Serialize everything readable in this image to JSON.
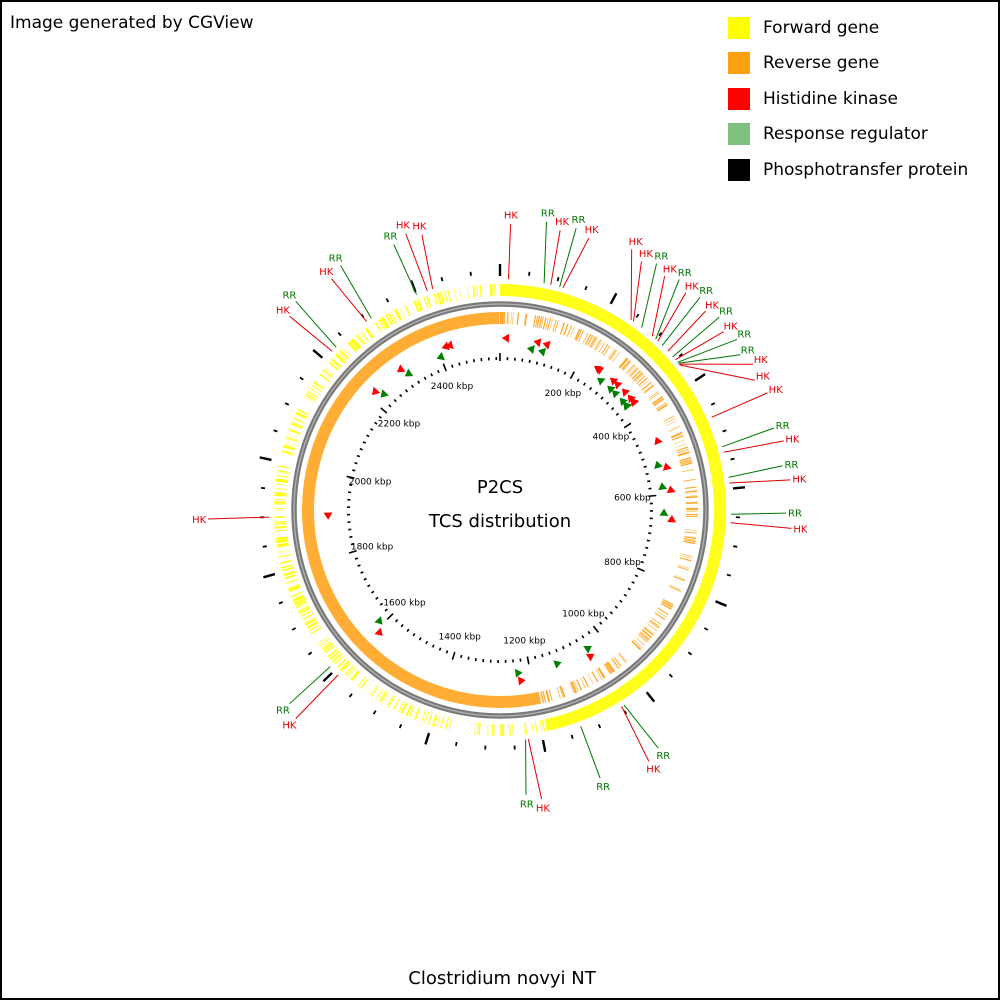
{
  "credit": "Image generated by CGView",
  "organism": "Clostridium novyi NT",
  "center": {
    "line1": "P2CS",
    "line2": "TCS distribution"
  },
  "legend": [
    {
      "label": "Forward gene",
      "color": "#ffff00"
    },
    {
      "label": "Reverse gene",
      "color": "#ff9f11"
    },
    {
      "label": "Histidine kinase",
      "color": "#ff0000"
    },
    {
      "label": "Response regulator",
      "color": "#80c080"
    },
    {
      "label": "Phosphotransfer protein",
      "color": "#000000"
    }
  ],
  "map": {
    "genome_length_kbp": 2550,
    "tick_labels": [
      {
        "kbp": 200,
        "text": "200 kbp"
      },
      {
        "kbp": 400,
        "text": "400 kbp"
      },
      {
        "kbp": 600,
        "text": "600 kbp"
      },
      {
        "kbp": 800,
        "text": "800 kbp"
      },
      {
        "kbp": 1000,
        "text": "1000 kbp"
      },
      {
        "kbp": 1200,
        "text": "1200 kbp"
      },
      {
        "kbp": 1400,
        "text": "1400 kbp"
      },
      {
        "kbp": 1600,
        "text": "1600 kbp"
      },
      {
        "kbp": 1800,
        "text": "1800 kbp"
      },
      {
        "kbp": 2000,
        "text": "2000 kbp"
      },
      {
        "kbp": 2200,
        "text": "2200 kbp"
      },
      {
        "kbp": 2400,
        "text": "2400 kbp"
      }
    ],
    "features": [
      {
        "type": "HK",
        "label": "HK",
        "kbp": 15,
        "strand": "reverse",
        "color": "#e00000"
      },
      {
        "type": "RR",
        "label": "RR",
        "kbp": 78,
        "strand": "reverse",
        "color": "#007700"
      },
      {
        "type": "HK",
        "label": "HK",
        "kbp": 90,
        "strand": "reverse",
        "color": "#e00000"
      },
      {
        "type": "RR",
        "label": "RR",
        "kbp": 106,
        "strand": "reverse",
        "color": "#007700"
      },
      {
        "type": "HK",
        "label": "HK",
        "kbp": 112,
        "strand": "reverse",
        "color": "#e00000"
      },
      {
        "type": "HK",
        "label": "HK",
        "kbp": 245,
        "strand": "reverse",
        "color": "#e00000"
      },
      {
        "type": "HK",
        "label": "HK",
        "kbp": 250,
        "strand": "reverse",
        "color": "#e00000"
      },
      {
        "type": "RR",
        "label": "RR",
        "kbp": 268,
        "strand": "reverse",
        "color": "#007700"
      },
      {
        "type": "HK",
        "label": "HK",
        "kbp": 292,
        "strand": "reverse",
        "color": "#e00000"
      },
      {
        "type": "RR",
        "label": "RR",
        "kbp": 300,
        "strand": "reverse",
        "color": "#007700"
      },
      {
        "type": "HK",
        "label": "HK",
        "kbp": 305,
        "strand": "reverse",
        "color": "#e00000"
      },
      {
        "type": "RR",
        "label": "RR",
        "kbp": 316,
        "strand": "reverse",
        "color": "#007700"
      },
      {
        "type": "HK",
        "label": "HK",
        "kbp": 330,
        "strand": "reverse",
        "color": "#e00000"
      },
      {
        "type": "RR",
        "label": "RR",
        "kbp": 343,
        "strand": "reverse",
        "color": "#007700"
      },
      {
        "type": "HK",
        "label": "HK",
        "kbp": 350,
        "strand": "reverse",
        "color": "#e00000"
      },
      {
        "type": "RR",
        "label": "RR",
        "kbp": 356,
        "strand": "reverse",
        "color": "#007700"
      },
      {
        "type": "RR",
        "label": "RR",
        "kbp": 358,
        "strand": "reverse",
        "color": "#007700"
      },
      {
        "type": "HK",
        "label": "HK",
        "kbp": 360,
        "strand": "reverse",
        "color": "#e00000"
      },
      {
        "type": "HK",
        "label": "HK",
        "kbp": 362,
        "strand": "reverse",
        "color": "#e00000"
      },
      {
        "type": "HK",
        "label": "HK",
        "kbp": 470,
        "strand": "reverse",
        "color": "#e00000"
      },
      {
        "type": "RR",
        "label": "RR",
        "kbp": 525,
        "strand": "reverse",
        "color": "#007700"
      },
      {
        "type": "HK",
        "label": "HK",
        "kbp": 535,
        "strand": "reverse",
        "color": "#e00000"
      },
      {
        "type": "RR",
        "label": "RR",
        "kbp": 580,
        "strand": "reverse",
        "color": "#007700"
      },
      {
        "type": "HK",
        "label": "HK",
        "kbp": 590,
        "strand": "reverse",
        "color": "#e00000"
      },
      {
        "type": "RR",
        "label": "RR",
        "kbp": 645,
        "strand": "reverse",
        "color": "#007700"
      },
      {
        "type": "HK",
        "label": "HK",
        "kbp": 660,
        "strand": "reverse",
        "color": "#e00000"
      },
      {
        "type": "RR",
        "label": "RR",
        "kbp": 1045,
        "strand": "reverse",
        "color": "#007700"
      },
      {
        "type": "HK",
        "label": "HK",
        "kbp": 1050,
        "strand": "reverse",
        "color": "#e00000"
      },
      {
        "type": "RR",
        "label": "RR",
        "kbp": 1130,
        "strand": "reverse",
        "color": "#007700"
      },
      {
        "type": "HK",
        "label": "HK",
        "kbp": 1225,
        "strand": "reverse",
        "color": "#e00000"
      },
      {
        "type": "RR",
        "label": "RR",
        "kbp": 1230,
        "strand": "reverse",
        "color": "#007700"
      },
      {
        "type": "HK",
        "label": "HK",
        "kbp": 1590,
        "strand": "reverse",
        "color": "#e00000"
      },
      {
        "type": "RR",
        "label": "RR",
        "kbp": 1610,
        "strand": "reverse",
        "color": "#007700"
      },
      {
        "type": "HK",
        "label": "HK",
        "kbp": 1900,
        "strand": "reverse",
        "color": "#e00000"
      },
      {
        "type": "HK",
        "label": "HK",
        "kbp": 2220,
        "strand": "reverse",
        "color": "#e00000"
      },
      {
        "type": "RR",
        "label": "RR",
        "kbp": 2230,
        "strand": "reverse",
        "color": "#007700"
      },
      {
        "type": "HK",
        "label": "HK",
        "kbp": 2300,
        "strand": "reverse",
        "color": "#e00000"
      },
      {
        "type": "RR",
        "label": "RR",
        "kbp": 2310,
        "strand": "reverse",
        "color": "#007700"
      },
      {
        "type": "RR",
        "label": "RR",
        "kbp": 2400,
        "strand": "reverse",
        "color": "#007700"
      },
      {
        "type": "HK",
        "label": "HK",
        "kbp": 2420,
        "strand": "reverse",
        "color": "#e00000"
      },
      {
        "type": "HK",
        "label": "HK",
        "kbp": 2430,
        "strand": "reverse",
        "color": "#e00000"
      }
    ]
  }
}
